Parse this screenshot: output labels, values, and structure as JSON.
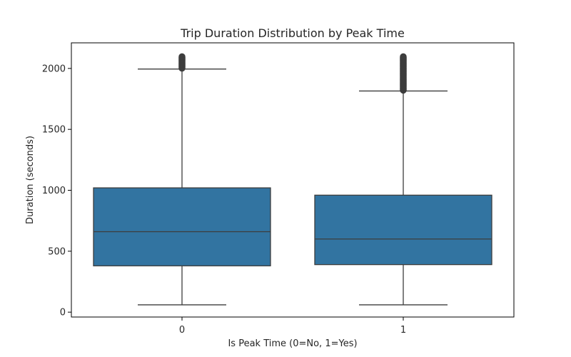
{
  "chart_data": {
    "type": "box",
    "title": "Trip Duration Distribution by Peak Time",
    "xlabel": "Is Peak Time (0=No, 1=Yes)",
    "ylabel": "Duration (seconds)",
    "categories": [
      "0",
      "1"
    ],
    "ylim": [
      -40,
      2210
    ],
    "yticks": [
      0,
      500,
      1000,
      1500,
      2000
    ],
    "grid": false,
    "box_color": "#3274a1",
    "line_color": "#3d3d3d",
    "boxes": [
      {
        "category": "0",
        "whisker_low": 60,
        "q1": 380,
        "median": 660,
        "q3": 1020,
        "whisker_high": 1995,
        "outliers_from": 1995,
        "outliers_to": 2100
      },
      {
        "category": "1",
        "whisker_low": 60,
        "q1": 390,
        "median": 600,
        "q3": 960,
        "whisker_high": 1815,
        "outliers_from": 1815,
        "outliers_to": 2100
      }
    ]
  }
}
